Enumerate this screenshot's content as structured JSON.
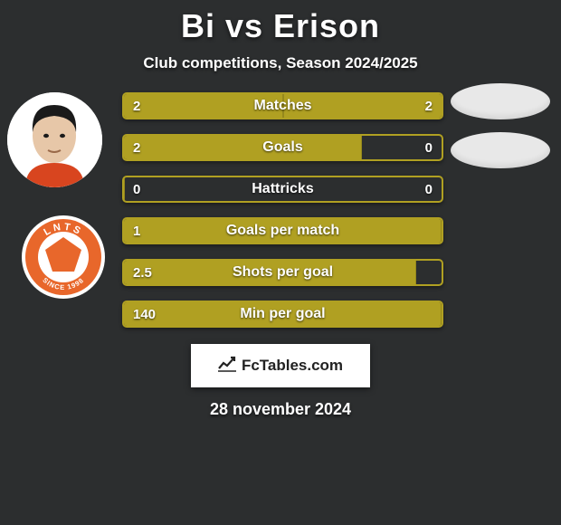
{
  "header": {
    "title": "Bi vs Erison",
    "subtitle": "Club competitions, Season 2024/2025",
    "title_fontsize": 36,
    "subtitle_fontsize": 17,
    "title_color": "#ffffff"
  },
  "background_color": "#2c2e2f",
  "bar": {
    "border_color": "#b0a022",
    "fill_color": "#b0a022",
    "empty_color": "#2c2e2f",
    "height": 30,
    "gap": 16,
    "radius": 5,
    "label_fontsize": 16,
    "value_fontsize": 15
  },
  "rows": [
    {
      "label": "Matches",
      "left": "2",
      "right": "2",
      "left_pct": 50,
      "right_pct": 50
    },
    {
      "label": "Goals",
      "left": "2",
      "right": "0",
      "left_pct": 75,
      "right_pct": 0
    },
    {
      "label": "Hattricks",
      "left": "0",
      "right": "0",
      "left_pct": 0,
      "right_pct": 0
    },
    {
      "label": "Goals per match",
      "left": "1",
      "right": "",
      "left_pct": 100,
      "right_pct": 0
    },
    {
      "label": "Shots per goal",
      "left": "2.5",
      "right": "",
      "left_pct": 92,
      "right_pct": 0
    },
    {
      "label": "Min per goal",
      "left": "140",
      "right": "",
      "left_pct": 100,
      "right_pct": 0
    }
  ],
  "avatars": {
    "left_player_bg": "#ffffff",
    "right_oval_bg": "#e8e8e8",
    "club_badge": {
      "outer": "#ffffff",
      "ring": "#e8672b",
      "text_top": "LNTS",
      "text_bottom": "SINCE 1998",
      "text_color": "#ffffff"
    },
    "face": {
      "skin": "#e7c7a8",
      "hair": "#1a1a1a",
      "shirt": "#d8451f"
    }
  },
  "watermark": {
    "text": "FcTables.com",
    "bg": "#ffffff",
    "text_color": "#222222"
  },
  "date": "28 november 2024"
}
